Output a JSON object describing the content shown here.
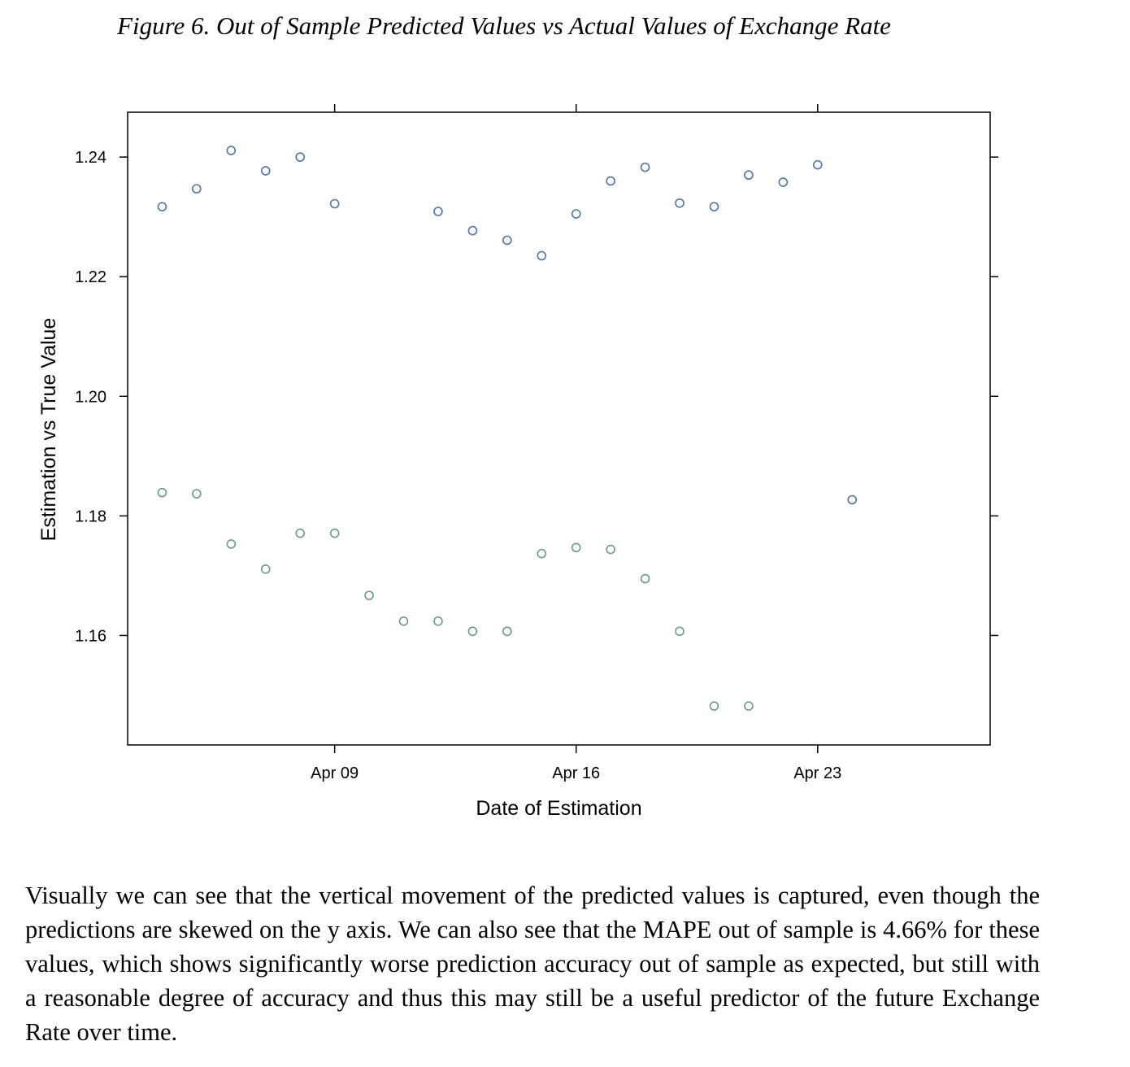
{
  "figure": {
    "caption": "Figure 6. Out of Sample Predicted Values vs Actual Values of Exchange Rate"
  },
  "chart_data": {
    "type": "scatter",
    "xlabel": "Date of Estimation",
    "ylabel": "Estimation vs True Value",
    "ylim": [
      1.1417,
      1.2475
    ],
    "xlim": [
      "Apr 03",
      "Apr 28"
    ],
    "x_ticks": [
      {
        "date": "Apr 09",
        "label": "Apr 09"
      },
      {
        "date": "Apr 16",
        "label": "Apr 16"
      },
      {
        "date": "Apr 23",
        "label": "Apr 23"
      }
    ],
    "y_ticks": [
      {
        "value": 1.16,
        "label": "1.16"
      },
      {
        "value": 1.18,
        "label": "1.18"
      },
      {
        "value": 1.2,
        "label": "1.20"
      },
      {
        "value": 1.22,
        "label": "1.22"
      },
      {
        "value": 1.24,
        "label": "1.24"
      }
    ],
    "grid": false,
    "series": [
      {
        "color": "#4f75a8",
        "points": [
          {
            "x": "Apr 04",
            "y": 1.2317
          },
          {
            "x": "Apr 05",
            "y": 1.2347
          },
          {
            "x": "Apr 06",
            "y": 1.2411
          },
          {
            "x": "Apr 07",
            "y": 1.2377
          },
          {
            "x": "Apr 08",
            "y": 1.24
          },
          {
            "x": "Apr 09",
            "y": 1.2322
          },
          {
            "x": "Apr 12",
            "y": 1.2309
          },
          {
            "x": "Apr 13",
            "y": 1.2277
          },
          {
            "x": "Apr 14",
            "y": 1.2261
          },
          {
            "x": "Apr 15",
            "y": 1.2235
          },
          {
            "x": "Apr 16",
            "y": 1.2305
          },
          {
            "x": "Apr 17",
            "y": 1.236
          },
          {
            "x": "Apr 18",
            "y": 1.2383
          },
          {
            "x": "Apr 19",
            "y": 1.2323
          },
          {
            "x": "Apr 20",
            "y": 1.2317
          },
          {
            "x": "Apr 21",
            "y": 1.237
          },
          {
            "x": "Apr 22",
            "y": 1.2358
          },
          {
            "x": "Apr 23",
            "y": 1.2387
          },
          {
            "x": "Apr 24",
            "y": 1.1827
          }
        ]
      },
      {
        "color": "#6a9a88",
        "points": [
          {
            "x": "Apr 04",
            "y": 1.1839
          },
          {
            "x": "Apr 05",
            "y": 1.1837
          },
          {
            "x": "Apr 06",
            "y": 1.1753
          },
          {
            "x": "Apr 07",
            "y": 1.1711
          },
          {
            "x": "Apr 08",
            "y": 1.1771
          },
          {
            "x": "Apr 09",
            "y": 1.1771
          },
          {
            "x": "Apr 10",
            "y": 1.1667
          },
          {
            "x": "Apr 11",
            "y": 1.1624
          },
          {
            "x": "Apr 12",
            "y": 1.1624
          },
          {
            "x": "Apr 13",
            "y": 1.1607
          },
          {
            "x": "Apr 14",
            "y": 1.1607
          },
          {
            "x": "Apr 15",
            "y": 1.1737
          },
          {
            "x": "Apr 16",
            "y": 1.1747
          },
          {
            "x": "Apr 17",
            "y": 1.1744
          },
          {
            "x": "Apr 18",
            "y": 1.1695
          },
          {
            "x": "Apr 19",
            "y": 1.1607
          },
          {
            "x": "Apr 20",
            "y": 1.1482
          },
          {
            "x": "Apr 21",
            "y": 1.1482
          }
        ]
      }
    ]
  },
  "body": {
    "paragraph": "Visually we can see that the vertical movement of the predicted values is captured, even though the predictions are skewed on the y axis. We can also see that the MAPE out of sample is 4.66% for these values, which shows significantly worse prediction accuracy out of sample as expected, but still with a reasonable degree of accuracy and thus this may still be a useful predictor of the future Exchange Rate over time."
  }
}
